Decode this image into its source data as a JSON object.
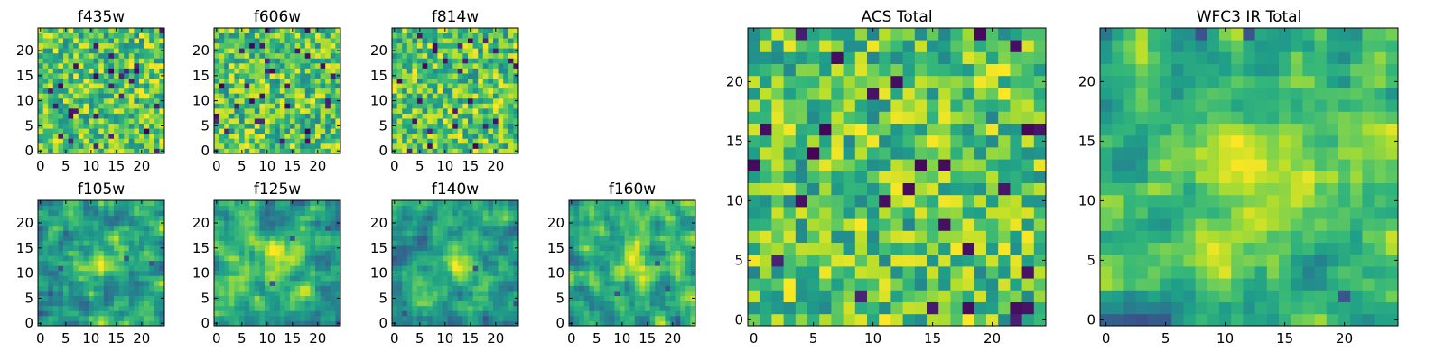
{
  "chart_data": [
    {
      "type": "heatmap",
      "title": "f435w",
      "xticks": [
        "0",
        "5",
        "10",
        "15",
        "20"
      ],
      "yticks": [
        "0",
        "5",
        "10",
        "15",
        "20"
      ],
      "xlim": [
        -0.5,
        24.5
      ],
      "ylim": [
        -0.5,
        24.5
      ],
      "grid_size": 25,
      "pattern": "noise",
      "seed": 11,
      "colormap": "viridis"
    },
    {
      "type": "heatmap",
      "title": "f606w",
      "xticks": [
        "0",
        "5",
        "10",
        "15",
        "20"
      ],
      "yticks": [
        "0",
        "5",
        "10",
        "15",
        "20"
      ],
      "xlim": [
        -0.5,
        24.5
      ],
      "ylim": [
        -0.5,
        24.5
      ],
      "grid_size": 25,
      "pattern": "noise",
      "seed": 23,
      "colormap": "viridis"
    },
    {
      "type": "heatmap",
      "title": "f814w",
      "xticks": [
        "0",
        "5",
        "10",
        "15",
        "20"
      ],
      "yticks": [
        "0",
        "5",
        "10",
        "15",
        "20"
      ],
      "xlim": [
        -0.5,
        24.5
      ],
      "ylim": [
        -0.5,
        24.5
      ],
      "grid_size": 25,
      "pattern": "noise",
      "seed": 37,
      "colormap": "viridis"
    },
    {
      "type": "heatmap",
      "title": "f105w",
      "xticks": [
        "0",
        "5",
        "10",
        "15",
        "20"
      ],
      "yticks": [
        "0",
        "5",
        "10",
        "15",
        "20"
      ],
      "xlim": [
        -0.5,
        24.5
      ],
      "ylim": [
        -0.5,
        24.5
      ],
      "grid_size": 25,
      "pattern": "smooth",
      "seed": 41,
      "colormap": "viridis"
    },
    {
      "type": "heatmap",
      "title": "f125w",
      "xticks": [
        "0",
        "5",
        "10",
        "15",
        "20"
      ],
      "yticks": [
        "0",
        "5",
        "10",
        "15",
        "20"
      ],
      "xlim": [
        -0.5,
        24.5
      ],
      "ylim": [
        -0.5,
        24.5
      ],
      "grid_size": 25,
      "pattern": "smooth",
      "seed": 53,
      "colormap": "viridis"
    },
    {
      "type": "heatmap",
      "title": "f140w",
      "xticks": [
        "0",
        "5",
        "10",
        "15",
        "20"
      ],
      "yticks": [
        "0",
        "5",
        "10",
        "15",
        "20"
      ],
      "xlim": [
        -0.5,
        24.5
      ],
      "ylim": [
        -0.5,
        24.5
      ],
      "grid_size": 25,
      "pattern": "smooth",
      "seed": 67,
      "colormap": "viridis"
    },
    {
      "type": "heatmap",
      "title": "f160w",
      "xticks": [
        "0",
        "5",
        "10",
        "15",
        "20"
      ],
      "yticks": [
        "0",
        "5",
        "10",
        "15",
        "20"
      ],
      "xlim": [
        -0.5,
        24.5
      ],
      "ylim": [
        -0.5,
        24.5
      ],
      "grid_size": 25,
      "pattern": "smooth",
      "seed": 79,
      "colormap": "viridis"
    },
    {
      "type": "heatmap",
      "title": "ACS Total",
      "xticks": [
        "0",
        "5",
        "10",
        "15",
        "20"
      ],
      "yticks": [
        "0",
        "5",
        "10",
        "15",
        "20"
      ],
      "xlim": [
        -0.5,
        24.5
      ],
      "ylim": [
        -0.5,
        24.5
      ],
      "grid_size": 25,
      "pattern": "noise",
      "seed": 83,
      "colormap": "viridis"
    },
    {
      "type": "heatmap",
      "title": "WFC3 IR Total",
      "xticks": [
        "0",
        "5",
        "10",
        "15",
        "20"
      ],
      "yticks": [
        "0",
        "5",
        "10",
        "15",
        "20"
      ],
      "xlim": [
        -0.5,
        24.5
      ],
      "ylim": [
        -0.5,
        24.5
      ],
      "grid_size": 25,
      "pattern": "smooth",
      "seed": 97,
      "colormap": "viridis"
    }
  ]
}
